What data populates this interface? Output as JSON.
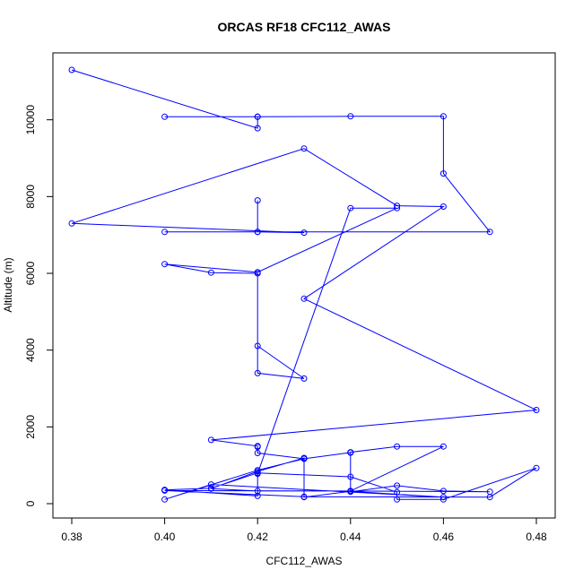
{
  "chart_data": {
    "type": "line",
    "title": "ORCAS RF18 CFC112_AWAS",
    "xlabel": "CFC112_AWAS",
    "ylabel": "Altitude (m)",
    "xlim": [
      0.38,
      0.48
    ],
    "ylim": [
      0,
      11300
    ],
    "xticks": [
      0.38,
      0.4,
      0.42,
      0.44,
      0.46,
      0.48
    ],
    "xtick_labels": [
      "0.38",
      "0.40",
      "0.42",
      "0.44",
      "0.46",
      "0.48"
    ],
    "yticks": [
      0,
      2000,
      4000,
      6000,
      8000,
      10000
    ],
    "ytick_labels": [
      "0",
      "2000",
      "4000",
      "6000",
      "8000",
      "10000"
    ],
    "grid": false,
    "series": [
      {
        "color": "#0000ff",
        "marker": "open-circle",
        "x": [
          0.38,
          0.42,
          0.42,
          0.42,
          0.4,
          0.42,
          0.44,
          0.46,
          0.46,
          0.47,
          0.4,
          0.42,
          0.42,
          0.42,
          0.43,
          0.38,
          0.43,
          0.45,
          0.46,
          0.43,
          0.48,
          0.41,
          0.42,
          0.42,
          0.42,
          0.43,
          0.44,
          0.44,
          0.45,
          0.46,
          0.44,
          0.42,
          0.41,
          0.42,
          0.43,
          0.43,
          0.44,
          0.46,
          0.41,
          0.4,
          0.42,
          0.43,
          0.44,
          0.44,
          0.45,
          0.46,
          0.47,
          0.44,
          0.4,
          0.43,
          0.47,
          0.48,
          0.46,
          0.45,
          0.45,
          0.44,
          0.42,
          0.41,
          0.4,
          0.42,
          0.42,
          0.44,
          0.45,
          0.42,
          0.4,
          0.41,
          0.42,
          0.42,
          0.43,
          0.42
        ],
        "y": [
          11300,
          9780,
          10080,
          10080,
          10080,
          10080,
          10090,
          10090,
          8600,
          7080,
          7080,
          7080,
          7900,
          7080,
          7060,
          7300,
          9250,
          7760,
          7740,
          5340,
          2440,
          1660,
          1500,
          1480,
          1320,
          1170,
          1330,
          1340,
          1490,
          1490,
          330,
          330,
          390,
          840,
          1190,
          170,
          320,
          170,
          500,
          110,
          870,
          1170,
          1330,
          310,
          470,
          330,
          310,
          330,
          340,
          180,
          170,
          930,
          110,
          110,
          300,
          700,
          800,
          400,
          360,
          200,
          780,
          7700,
          7700,
          6030,
          6240,
          6020,
          6000,
          3400,
          3260,
          4110
        ]
      }
    ]
  }
}
